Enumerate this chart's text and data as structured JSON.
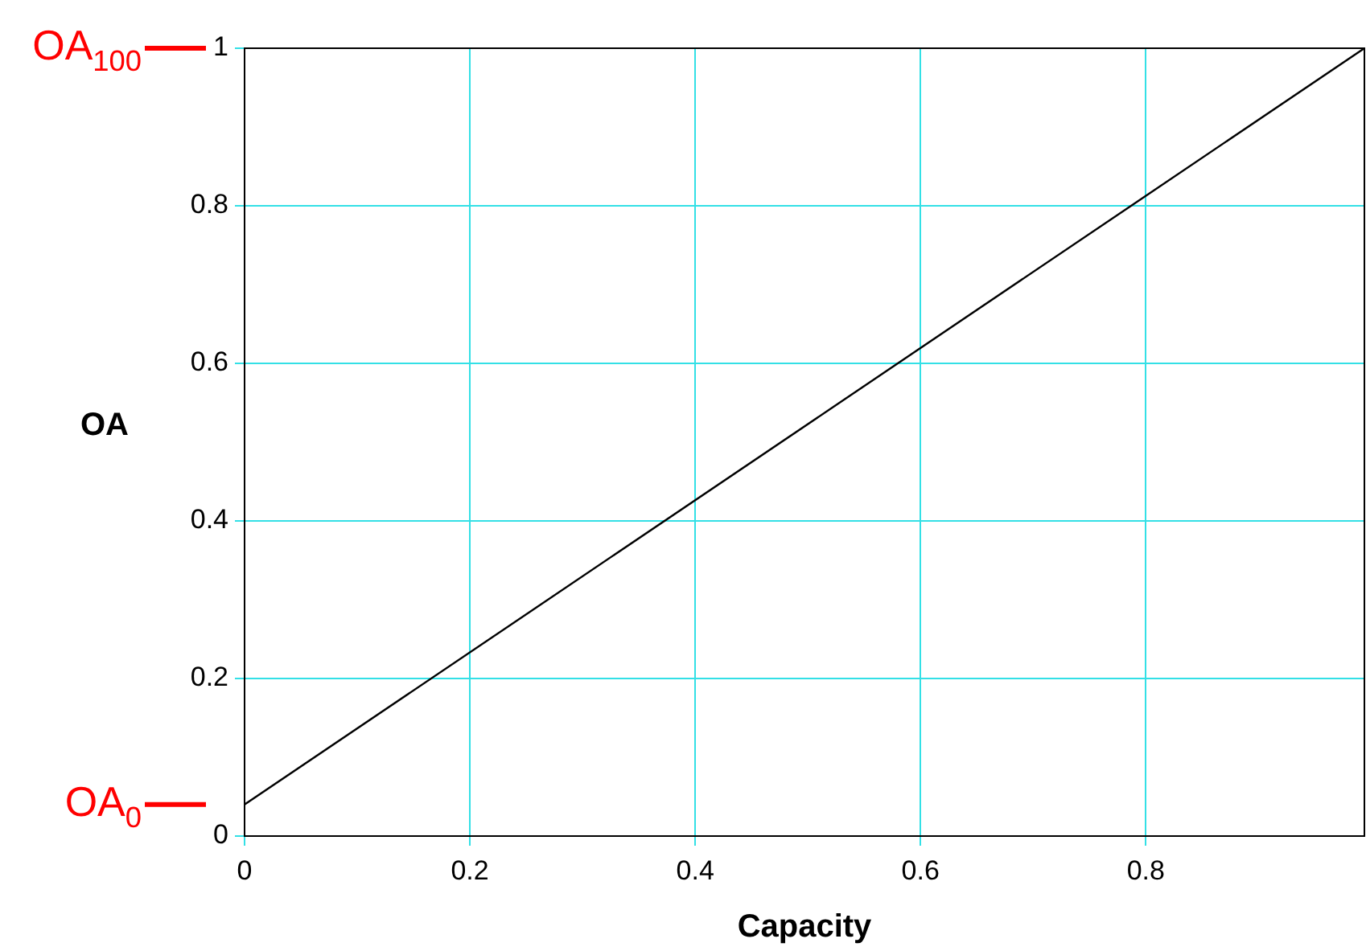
{
  "chart_data": {
    "type": "line",
    "xlabel": "Capacity",
    "ylabel": "OA",
    "x": [
      0,
      0.994
    ],
    "series": [
      {
        "color": "#000000",
        "values": [
          0.04,
          1
        ]
      }
    ],
    "xlim": [
      0,
      0.994
    ],
    "xticks": [
      0,
      0.2,
      0.4,
      0.6,
      0.8
    ],
    "ylim": [
      0,
      1
    ],
    "yticks": [
      0,
      0.2,
      0.4,
      0.6,
      0.8,
      1
    ],
    "grid": true,
    "legend": false,
    "marker": "none",
    "line_style": "solid",
    "ref_lines": [
      {
        "axis": "y",
        "value": 1,
        "label": "OA$_{100}$",
        "color": "#ff0000"
      },
      {
        "axis": "y",
        "value": 0.04,
        "label": "OA$_{0}$",
        "color": "#ff0000"
      }
    ]
  }
}
